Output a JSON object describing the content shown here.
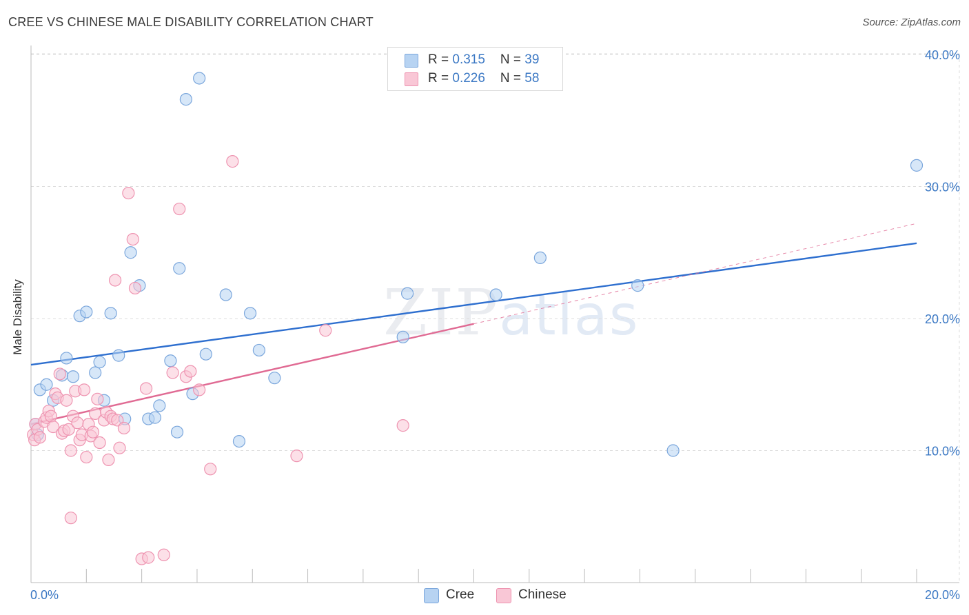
{
  "title": "CREE VS CHINESE MALE DISABILITY CORRELATION CHART",
  "source": "Source: ZipAtlas.com",
  "watermark": {
    "zip": "ZIP",
    "atlas": "atlas"
  },
  "colors": {
    "cree_fill": "#b7d3f2",
    "cree_stroke": "#7aa6dc",
    "cree_line": "#2e6fcf",
    "chinese_fill": "#f9c7d6",
    "chinese_stroke": "#ee93b0",
    "chinese_line": "#e06a93",
    "tick_text": "#3b78c4",
    "grid": "#dddddd"
  },
  "legend_top": {
    "rows": [
      {
        "r_label": "R = ",
        "r_value": "0.315",
        "n_label": "N = ",
        "n_value": "39"
      },
      {
        "r_label": "R = ",
        "r_value": "0.226",
        "n_label": "N = ",
        "n_value": "58"
      }
    ]
  },
  "legend_bottom": [
    "Cree",
    "Chinese"
  ],
  "chart_data": {
    "type": "scatter",
    "title": "CREE VS CHINESE MALE DISABILITY CORRELATION CHART",
    "xlabel": "",
    "ylabel": "Male Disability",
    "xlim": [
      0,
      20
    ],
    "ylim": [
      0,
      42
    ],
    "x_tick_labels": [
      "0.0%",
      "20.0%"
    ],
    "y_ticks": [
      10,
      20,
      30,
      40
    ],
    "y_tick_labels": [
      "10.0%",
      "20.0%",
      "30.0%",
      "40.0%"
    ],
    "grid": true,
    "legend_placement": "top-center and bottom",
    "series": [
      {
        "name": "Cree",
        "r": 0.315,
        "n": 39,
        "trend": {
          "x": [
            0,
            20
          ],
          "y": [
            16.5,
            25.7
          ]
        },
        "points": [
          [
            0.1,
            12.0
          ],
          [
            0.15,
            11.2
          ],
          [
            0.2,
            14.6
          ],
          [
            0.35,
            15.0
          ],
          [
            0.5,
            13.8
          ],
          [
            0.7,
            15.7
          ],
          [
            0.8,
            17.0
          ],
          [
            0.95,
            15.6
          ],
          [
            1.1,
            20.2
          ],
          [
            1.25,
            20.5
          ],
          [
            1.45,
            15.9
          ],
          [
            1.55,
            16.7
          ],
          [
            1.65,
            13.8
          ],
          [
            1.8,
            20.4
          ],
          [
            1.98,
            17.2
          ],
          [
            2.12,
            12.4
          ],
          [
            2.25,
            25.0
          ],
          [
            2.45,
            22.5
          ],
          [
            2.65,
            12.4
          ],
          [
            2.8,
            12.5
          ],
          [
            2.9,
            13.4
          ],
          [
            3.15,
            16.8
          ],
          [
            3.3,
            11.4
          ],
          [
            3.35,
            23.8
          ],
          [
            3.5,
            36.6
          ],
          [
            3.65,
            14.3
          ],
          [
            3.8,
            38.2
          ],
          [
            3.95,
            17.3
          ],
          [
            4.4,
            21.8
          ],
          [
            4.7,
            10.7
          ],
          [
            4.95,
            20.4
          ],
          [
            5.15,
            17.6
          ],
          [
            5.5,
            15.5
          ],
          [
            8.4,
            18.6
          ],
          [
            8.5,
            21.9
          ],
          [
            10.5,
            21.8
          ],
          [
            11.5,
            24.6
          ],
          [
            13.7,
            22.5
          ],
          [
            14.5,
            10.0
          ],
          [
            20.0,
            31.6
          ]
        ]
      },
      {
        "name": "Chinese",
        "r": 0.226,
        "n": 58,
        "trend": {
          "x": [
            0,
            10
          ],
          "y": [
            12.0,
            19.6
          ]
        },
        "trend_extension": {
          "x": [
            10,
            20
          ],
          "y": [
            19.6,
            27.2
          ]
        },
        "points": [
          [
            0.05,
            11.2
          ],
          [
            0.08,
            10.8
          ],
          [
            0.1,
            12.0
          ],
          [
            0.15,
            11.6
          ],
          [
            0.2,
            11.0
          ],
          [
            0.3,
            12.2
          ],
          [
            0.35,
            12.5
          ],
          [
            0.4,
            13.0
          ],
          [
            0.45,
            12.6
          ],
          [
            0.5,
            11.8
          ],
          [
            0.55,
            14.3
          ],
          [
            0.6,
            14.0
          ],
          [
            0.65,
            15.8
          ],
          [
            0.7,
            11.3
          ],
          [
            0.75,
            11.5
          ],
          [
            0.8,
            13.8
          ],
          [
            0.85,
            11.6
          ],
          [
            0.9,
            10.0
          ],
          [
            0.95,
            12.6
          ],
          [
            1.0,
            14.5
          ],
          [
            1.05,
            12.1
          ],
          [
            1.1,
            10.8
          ],
          [
            1.15,
            11.2
          ],
          [
            1.2,
            14.6
          ],
          [
            1.25,
            9.5
          ],
          [
            1.3,
            12.0
          ],
          [
            1.35,
            11.1
          ],
          [
            1.4,
            11.4
          ],
          [
            1.45,
            12.8
          ],
          [
            1.5,
            13.9
          ],
          [
            1.55,
            10.6
          ],
          [
            1.65,
            12.3
          ],
          [
            1.7,
            12.9
          ],
          [
            1.75,
            9.3
          ],
          [
            1.8,
            12.6
          ],
          [
            1.85,
            12.4
          ],
          [
            1.9,
            22.9
          ],
          [
            1.95,
            12.3
          ],
          [
            2.0,
            10.2
          ],
          [
            2.1,
            11.7
          ],
          [
            2.2,
            29.5
          ],
          [
            2.3,
            26.0
          ],
          [
            2.35,
            22.3
          ],
          [
            2.5,
            1.8
          ],
          [
            2.6,
            14.7
          ],
          [
            3.0,
            2.1
          ],
          [
            3.2,
            15.9
          ],
          [
            3.35,
            28.3
          ],
          [
            3.5,
            15.6
          ],
          [
            3.6,
            16.0
          ],
          [
            3.8,
            14.6
          ],
          [
            4.05,
            8.6
          ],
          [
            4.55,
            31.9
          ],
          [
            0.9,
            4.9
          ],
          [
            6.0,
            9.6
          ],
          [
            6.65,
            19.1
          ],
          [
            8.4,
            11.9
          ],
          [
            2.65,
            1.9
          ]
        ]
      }
    ]
  }
}
